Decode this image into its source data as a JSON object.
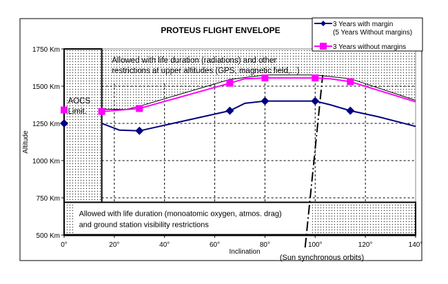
{
  "chart_data": {
    "type": "line",
    "title": "PROTEUS FLIGHT ENVELOPE",
    "xlabel": "Inclination",
    "ylabel": "Altitude",
    "xlim": [
      0,
      140
    ],
    "ylim": [
      500,
      1750
    ],
    "xticks": [
      0,
      20,
      40,
      60,
      80,
      100,
      120,
      140
    ],
    "xtick_labels": [
      "0°",
      "20°",
      "40°",
      "60°",
      "80°",
      "100°",
      "120°",
      "140°"
    ],
    "yticks": [
      500,
      750,
      1000,
      1250,
      1500,
      1750
    ],
    "ytick_labels": [
      "500 Km",
      "750 Km",
      "1000 Km",
      "1250 Km",
      "1500 Km",
      "1750 Km"
    ],
    "grid": true,
    "legend_position": "top-right",
    "series": [
      {
        "name": "3 Years with margin (5 Years Without margins)",
        "legend_line1": "3 Years with margin",
        "legend_line2": "(5 Years Without margins)",
        "color": "#000080",
        "marker": "diamond",
        "points": [
          [
            0,
            1250
          ],
          [
            30,
            1200
          ],
          [
            66,
            1335
          ],
          [
            80,
            1400
          ],
          [
            100,
            1400
          ],
          [
            114,
            1335
          ],
          [
            140,
            1230
          ]
        ],
        "markers": [
          [
            0,
            1250
          ],
          [
            30,
            1200
          ],
          [
            66,
            1335
          ],
          [
            80,
            1400
          ],
          [
            100,
            1400
          ],
          [
            114,
            1335
          ]
        ],
        "curve": [
          [
            15,
            1250
          ],
          [
            22,
            1205
          ],
          [
            30,
            1200
          ],
          [
            66,
            1335
          ],
          [
            72,
            1385
          ],
          [
            80,
            1400
          ],
          [
            100,
            1400
          ],
          [
            106,
            1375
          ],
          [
            114,
            1335
          ],
          [
            125,
            1295
          ],
          [
            140,
            1230
          ]
        ]
      },
      {
        "name": "3 Years without margins",
        "legend_line1": "3 Years without margins",
        "color": "#FF00FF",
        "marker": "square",
        "points": [
          [
            0,
            1340
          ],
          [
            15,
            1330
          ],
          [
            30,
            1350
          ],
          [
            66,
            1520
          ],
          [
            80,
            1555
          ],
          [
            100,
            1555
          ],
          [
            114,
            1530
          ],
          [
            140,
            1395
          ]
        ],
        "markers": [
          [
            0,
            1340
          ],
          [
            15,
            1330
          ],
          [
            30,
            1350
          ],
          [
            66,
            1520
          ],
          [
            80,
            1555
          ],
          [
            100,
            1555
          ],
          [
            114,
            1530
          ]
        ],
        "curve": [
          [
            15,
            1330
          ],
          [
            30,
            1350
          ],
          [
            66,
            1520
          ],
          [
            72,
            1550
          ],
          [
            80,
            1555
          ],
          [
            100,
            1555
          ],
          [
            106,
            1550
          ],
          [
            114,
            1530
          ],
          [
            140,
            1395
          ]
        ]
      }
    ],
    "upper_limit_line": [
      [
        15,
        1345
      ],
      [
        25,
        1345
      ],
      [
        30,
        1365
      ],
      [
        66,
        1545
      ],
      [
        80,
        1575
      ],
      [
        100,
        1575
      ],
      [
        114,
        1550
      ],
      [
        140,
        1405
      ]
    ],
    "regions": [
      {
        "name": "aocs-limit",
        "label_lines": [
          "AOCS",
          "Limit."
        ],
        "x": [
          0,
          15
        ],
        "y": [
          720,
          1750
        ]
      },
      {
        "name": "upper-restriction",
        "label_lines": [
          "Allowed with life duration (radiations) and other",
          "restrictions at upper altitudes (GPS, magnetic field,...)"
        ]
      },
      {
        "name": "lower-restriction",
        "label_lines": [
          "Allowed with life duration (monoatomic oxygen, atmos. drag)",
          "and ground station visibility restrictions"
        ],
        "x": [
          0,
          140
        ],
        "y": [
          500,
          720
        ]
      }
    ],
    "sun_sync_line": [
      [
        96,
        500
      ],
      [
        103,
        1575
      ]
    ],
    "annotations": [
      "(Sun synchronous orbits)"
    ]
  }
}
